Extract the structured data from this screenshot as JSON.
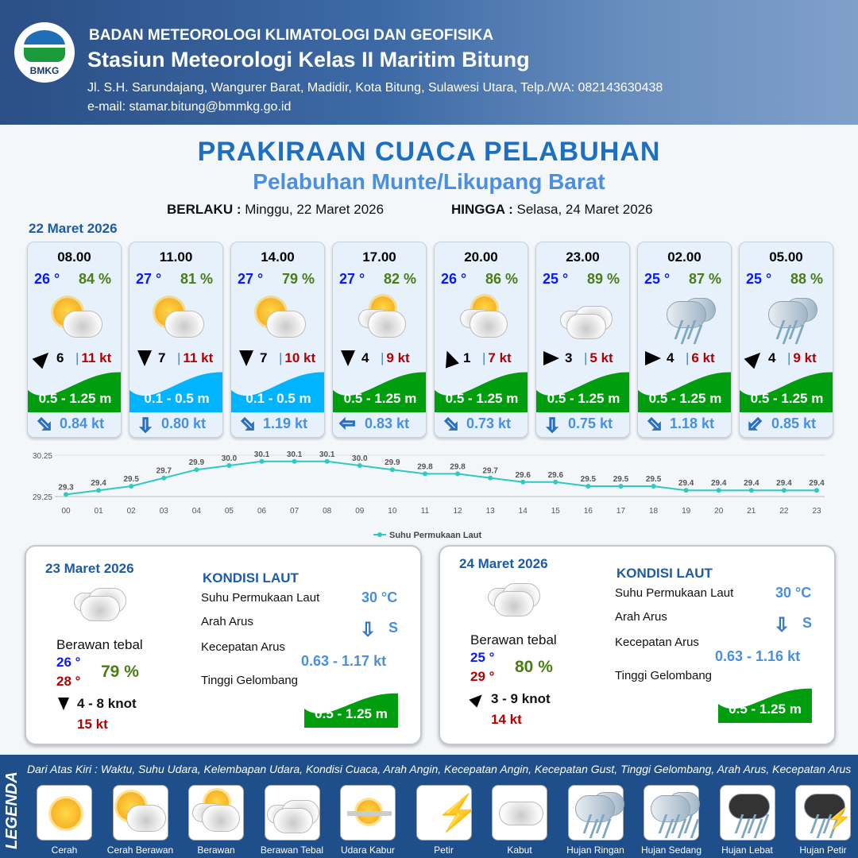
{
  "header": {
    "org": "BADAN METEOROLOGI KLIMATOLOGI DAN GEOFISIKA",
    "station": "Stasiun Meteorologi Kelas II Maritim Bitung",
    "address": "Jl. S.H. Sarundajang, Wangurer Barat, Madidir, Kota Bitung, Sulawesi Utara, Telp./WA: 082143630438",
    "email": "e-mail: stamar.bitung@bmmkg.go.id",
    "logo_text": "BMKG"
  },
  "title": "PRAKIRAAN CUACA PELABUHAN",
  "subtitle": "Pelabuhan Munte/Likupang Barat",
  "validity": {
    "from_label": "BERLAKU :",
    "from": "Minggu, 22 Maret 2026",
    "to_label": "HINGGA :",
    "to": "Selasa, 24 Maret 2026"
  },
  "day1_date": "22 Maret 2026",
  "colors": {
    "wave_green": "#009e0f",
    "wave_blue": "#00b4ff",
    "temp": "#0a18ff",
    "humidity": "#4a7d14",
    "gust": "#b30000",
    "current": "#4a8fdd",
    "chart_line": "#2ec9c0"
  },
  "cards": [
    {
      "time": "08.00",
      "temp": "26 °",
      "hum": "84 %",
      "weather": "Cerah Berawan",
      "wind_dir_deg": 45,
      "wind": "6",
      "gust": "11 kt",
      "wave": "0.5 - 1.25 m",
      "wave_color": "green",
      "cur_dir_deg": 135,
      "cur": "0.84 kt"
    },
    {
      "time": "11.00",
      "temp": "27 °",
      "hum": "81 %",
      "weather": "Cerah Berawan",
      "wind_dir_deg": 180,
      "wind": "7",
      "gust": "11 kt",
      "wave": "0.1 - 0.5 m",
      "wave_color": "blue",
      "cur_dir_deg": 180,
      "cur": "0.80 kt"
    },
    {
      "time": "14.00",
      "temp": "27 °",
      "hum": "79 %",
      "weather": "Cerah Berawan",
      "wind_dir_deg": 180,
      "wind": "7",
      "gust": "10 kt",
      "wave": "0.1 - 0.5 m",
      "wave_color": "blue",
      "cur_dir_deg": 135,
      "cur": "1.19 kt"
    },
    {
      "time": "17.00",
      "temp": "27 °",
      "hum": "82 %",
      "weather": "Berawan",
      "wind_dir_deg": 180,
      "wind": "4",
      "gust": "9 kt",
      "wave": "0.5 - 1.25 m",
      "wave_color": "green",
      "cur_dir_deg": 270,
      "cur": "0.83 kt"
    },
    {
      "time": "20.00",
      "temp": "26 °",
      "hum": "86 %",
      "weather": "Berawan",
      "wind_dir_deg": -20,
      "wind": "1",
      "gust": "7 kt",
      "wave": "0.5 - 1.25 m",
      "wave_color": "green",
      "cur_dir_deg": 135,
      "cur": "0.73 kt"
    },
    {
      "time": "23.00",
      "temp": "25 °",
      "hum": "89 %",
      "weather": "Berawan Tebal",
      "wind_dir_deg": 90,
      "wind": "3",
      "gust": "5 kt",
      "wave": "0.5 - 1.25 m",
      "wave_color": "green",
      "cur_dir_deg": 180,
      "cur": "0.75 kt"
    },
    {
      "time": "02.00",
      "temp": "25 °",
      "hum": "87 %",
      "weather": "Hujan Ringan",
      "wind_dir_deg": 90,
      "wind": "4",
      "gust": "6 kt",
      "wave": "0.5 - 1.25 m",
      "wave_color": "green",
      "cur_dir_deg": 135,
      "cur": "1.18 kt"
    },
    {
      "time": "05.00",
      "temp": "25 °",
      "hum": "88 %",
      "weather": "Hujan Ringan",
      "wind_dir_deg": 45,
      "wind": "4",
      "gust": "9 kt",
      "wave": "0.5 - 1.25 m",
      "wave_color": "green",
      "cur_dir_deg": 225,
      "cur": "0.85 kt"
    }
  ],
  "chart_data": {
    "type": "line",
    "x": [
      "00",
      "01",
      "02",
      "03",
      "04",
      "05",
      "06",
      "07",
      "08",
      "09",
      "10",
      "11",
      "12",
      "13",
      "14",
      "15",
      "16",
      "17",
      "18",
      "19",
      "20",
      "21",
      "22",
      "23"
    ],
    "series": [
      {
        "name": "Suhu Permukaan Laut",
        "values": [
          29.3,
          29.4,
          29.5,
          29.7,
          29.9,
          30.0,
          30.1,
          30.1,
          30.1,
          30.0,
          29.9,
          29.8,
          29.8,
          29.7,
          29.6,
          29.6,
          29.5,
          29.5,
          29.5,
          29.4,
          29.4,
          29.4,
          29.4,
          29.4
        ]
      }
    ],
    "ylim": [
      29.25,
      30.25
    ],
    "yticks": [
      "29.25",
      "30.25"
    ],
    "grid": true,
    "legend": "bottom"
  },
  "days": [
    {
      "date": "23 Maret 2026",
      "weather": "Berawan tebal",
      "tmin": "26 °",
      "tmax": "28 °",
      "hum": "79 %",
      "wind_dir_deg": 180,
      "wind": "4 - 8 knot",
      "gust": "15 kt",
      "kondisi": "KONDISI LAUT",
      "sst_label": "Suhu Permukaan Laut",
      "sst": "30 °C",
      "arus_label": "Arah Arus",
      "arus_dir": "S",
      "arus_dir_deg": 180,
      "kec_label": "Kecepatan Arus",
      "kec": "0.63 - 1.17 kt",
      "wave_label": "Tinggi Gelombang",
      "wave": "0.5 - 1.25 m"
    },
    {
      "date": "24 Maret 2026",
      "weather": "Berawan tebal",
      "tmin": "25 °",
      "tmax": "29 °",
      "hum": "80 %",
      "wind_dir_deg": 45,
      "wind": "3 - 9 knot",
      "gust": "14 kt",
      "kondisi": "KONDISI LAUT",
      "sst_label": "Suhu Permukaan Laut",
      "sst": "30 °C",
      "arus_label": "Arah Arus",
      "arus_dir": "S",
      "arus_dir_deg": 180,
      "kec_label": "Kecepatan Arus",
      "kec": "0.63 - 1.16 kt",
      "wave_label": "Tinggi Gelombang",
      "wave": "0.5 - 1.25 m"
    }
  ],
  "legend": {
    "title": "LEGENDA",
    "description": "Dari Atas Kiri : Waktu, Suhu Udara, Kelembapan Udara, Kondisi Cuaca, Arah Angin, Kecepatan Angin, Kecepatan Gust, Tinggi Gelombang, Arah Arus, Kecepatan Arus",
    "items": [
      "Cerah",
      "Cerah Berawan",
      "Berawan",
      "Berawan Tebal",
      "Udara Kabur",
      "Petir",
      "Kabut",
      "Hujan Ringan",
      "Hujan Sedang",
      "Hujan Lebat",
      "Hujan Petir"
    ]
  }
}
